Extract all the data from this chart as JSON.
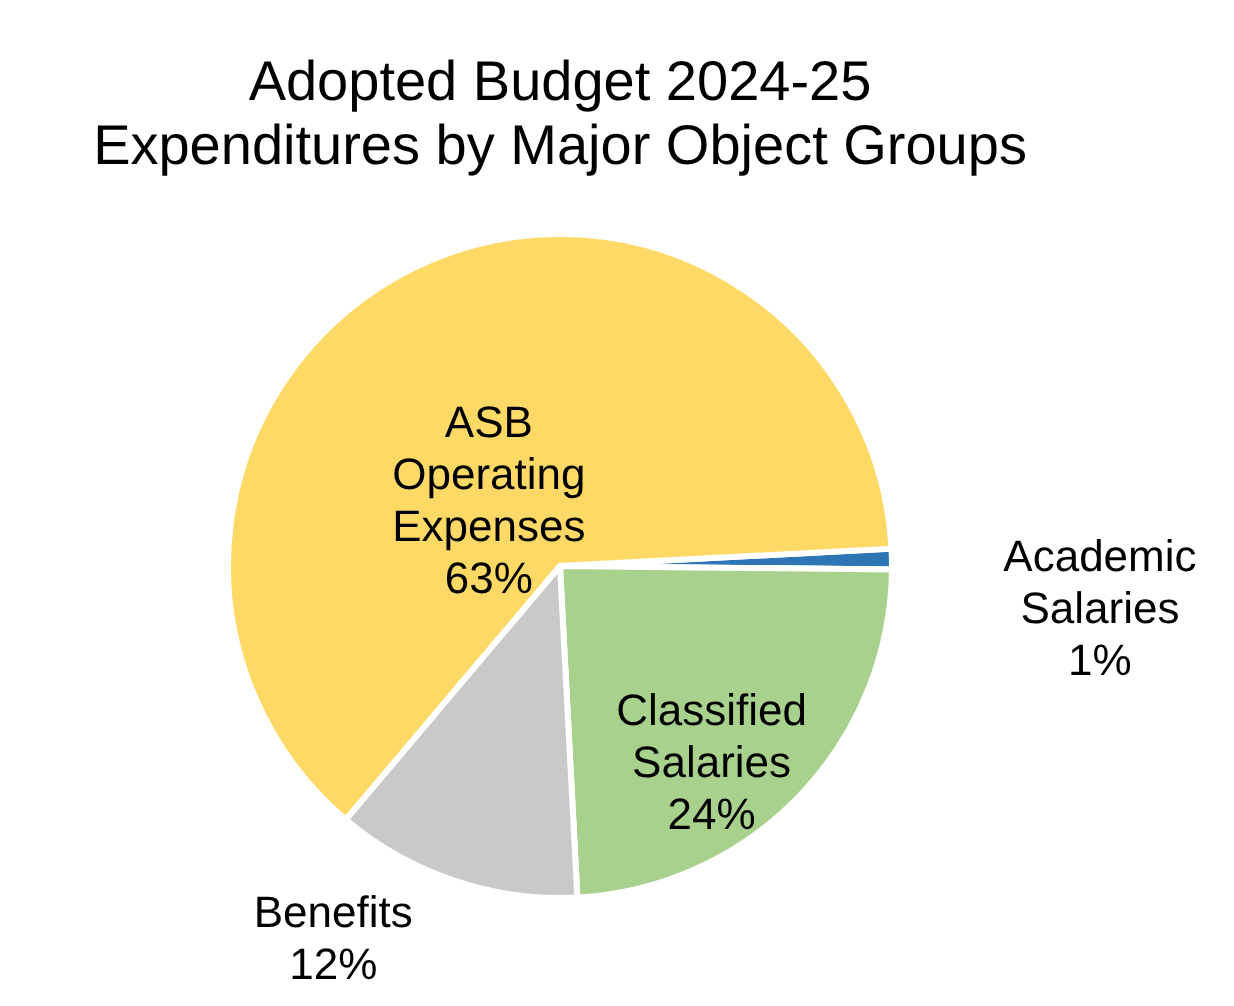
{
  "chart_data": {
    "type": "pie",
    "title": "Adopted Budget 2024-25",
    "subtitle": "Expenditures by Major Object Groups",
    "categories": [
      "Academic Salaries",
      "Classified Salaries",
      "Benefits",
      "ASB Operating Expenses"
    ],
    "values": [
      1,
      24,
      12,
      63
    ],
    "value_labels": [
      "1%",
      "24%",
      "12%",
      "63%"
    ],
    "colors": [
      "#2e75b6",
      "#a9d18e",
      "#c9c9c9",
      "#ffd966"
    ]
  }
}
